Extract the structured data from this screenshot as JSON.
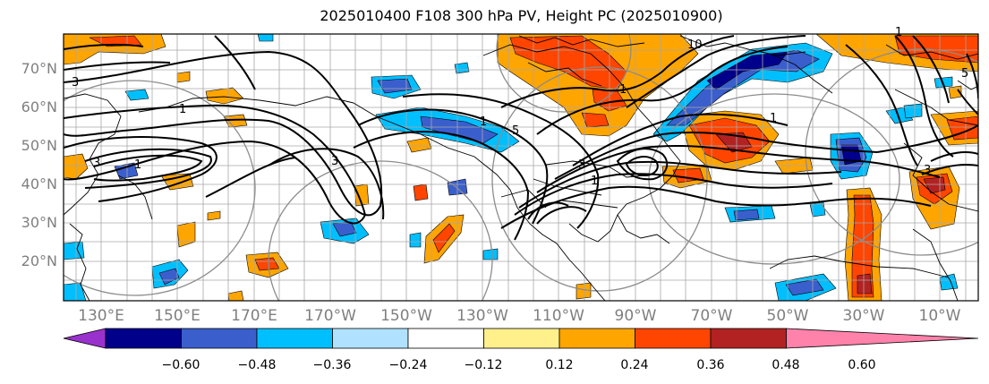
{
  "title": "2025010400 F108 300 hPa PV, Height PC (2025010900)",
  "lat_labels": [
    "70°N",
    "60°N",
    "50°N",
    "40°N",
    "30°N",
    "20°N"
  ],
  "lon_labels": [
    "130°E",
    "150°E",
    "170°E",
    "170°W",
    "150°W",
    "130°W",
    "110°W",
    "90°W",
    "70°W",
    "50°W",
    "30°W",
    "10°W"
  ],
  "contour_labels": [
    "3",
    "5",
    "10",
    "1",
    "3",
    "1",
    "3",
    "1",
    "1",
    "1",
    "3",
    "1",
    "5",
    "1",
    "3"
  ],
  "colorbar": {
    "ticks": [
      "−0.60",
      "−0.48",
      "−0.36",
      "−0.24",
      "−0.12",
      "0.12",
      "0.24",
      "0.36",
      "0.48",
      "0.60"
    ],
    "colors": [
      "#9932cc",
      "#00008b",
      "#3a5fcd",
      "#00bfff",
      "#b0e2ff",
      "#ffffff",
      "#fff08c",
      "#ffa500",
      "#ff4500",
      "#b22222",
      "#ff82ab"
    ]
  }
}
